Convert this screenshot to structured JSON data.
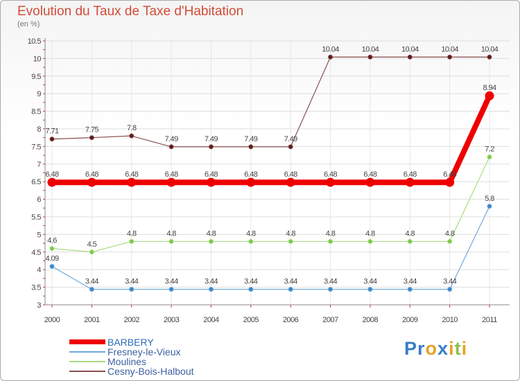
{
  "title": "Evolution du Taux de Taxe d'Habitation",
  "subtitle": "(en %)",
  "logo": {
    "letters": [
      {
        "ch": "P",
        "color": "#3a7ec6"
      },
      {
        "ch": "r",
        "color": "#3a7ec6"
      },
      {
        "ch": "o",
        "color": "#e6a323"
      },
      {
        "ch": "x",
        "color": "#3a7ec6"
      },
      {
        "ch": "i",
        "color": "#e6a323"
      },
      {
        "ch": "t",
        "color": "#8cc04b"
      },
      {
        "ch": "i",
        "color": "#e6a323"
      }
    ]
  },
  "chart_data": {
    "type": "line",
    "title": "Evolution du Taux de Taxe d'Habitation",
    "ylabel": "(en %)",
    "xlabel": "",
    "x": [
      "2000",
      "2001",
      "2002",
      "2003",
      "2004",
      "2005",
      "2006",
      "2007",
      "2008",
      "2009",
      "2010",
      "2011"
    ],
    "ylim": [
      3,
      10.5
    ],
    "yticks": [
      "3",
      "3.5",
      "4",
      "4.5",
      "5",
      "5.5",
      "6",
      "6.5",
      "7",
      "7.5",
      "8",
      "8.5",
      "9",
      "9.5",
      "10",
      "10.5"
    ],
    "grid": true,
    "legend_position": "bottom-left",
    "series": [
      {
        "name": "BARBERY",
        "color": "#ee0000",
        "bold": true,
        "values": [
          6.48,
          6.48,
          6.48,
          6.48,
          6.48,
          6.48,
          6.48,
          6.48,
          6.48,
          6.48,
          6.48,
          8.94
        ],
        "labels": [
          "6.48",
          "6.48",
          "6.48",
          "6.48",
          "6.48",
          "6.48",
          "6.48",
          "6.48",
          "6.48",
          "6.48",
          "6.48",
          "8.94"
        ]
      },
      {
        "name": "Fresney-le-Vieux",
        "color": "#6fa8dc",
        "marker": "#3d85c6",
        "values": [
          4.09,
          3.44,
          3.44,
          3.44,
          3.44,
          3.44,
          3.44,
          3.44,
          3.44,
          3.44,
          3.44,
          5.8
        ],
        "labels": [
          "4.09",
          "3.44",
          "3.44",
          "3.44",
          "3.44",
          "3.44",
          "3.44",
          "3.44",
          "3.44",
          "3.44",
          "3.44",
          "5.8"
        ]
      },
      {
        "name": "Moulines",
        "color": "#a8dc82",
        "marker": "#7ac943",
        "values": [
          4.6,
          4.5,
          4.8,
          4.8,
          4.8,
          4.8,
          4.8,
          4.8,
          4.8,
          4.8,
          4.8,
          7.2
        ],
        "labels": [
          "4.6",
          "4.5",
          "4.8",
          "4.8",
          "4.8",
          "4.8",
          "4.8",
          "4.8",
          "4.8",
          "4.8",
          "4.8",
          "7.2"
        ]
      },
      {
        "name": "Cesny-Bois-Halbout",
        "color": "#8a4f4f",
        "marker": "#5a1a1a",
        "values": [
          7.71,
          7.75,
          7.8,
          7.49,
          7.49,
          7.49,
          7.49,
          10.04,
          10.04,
          10.04,
          10.04,
          10.04
        ],
        "labels": [
          "7.71",
          "7.75",
          "7.8",
          "7.49",
          "7.49",
          "7.49",
          "7.49",
          "10.04",
          "10.04",
          "10.04",
          "10.04",
          "10.04"
        ]
      }
    ]
  }
}
